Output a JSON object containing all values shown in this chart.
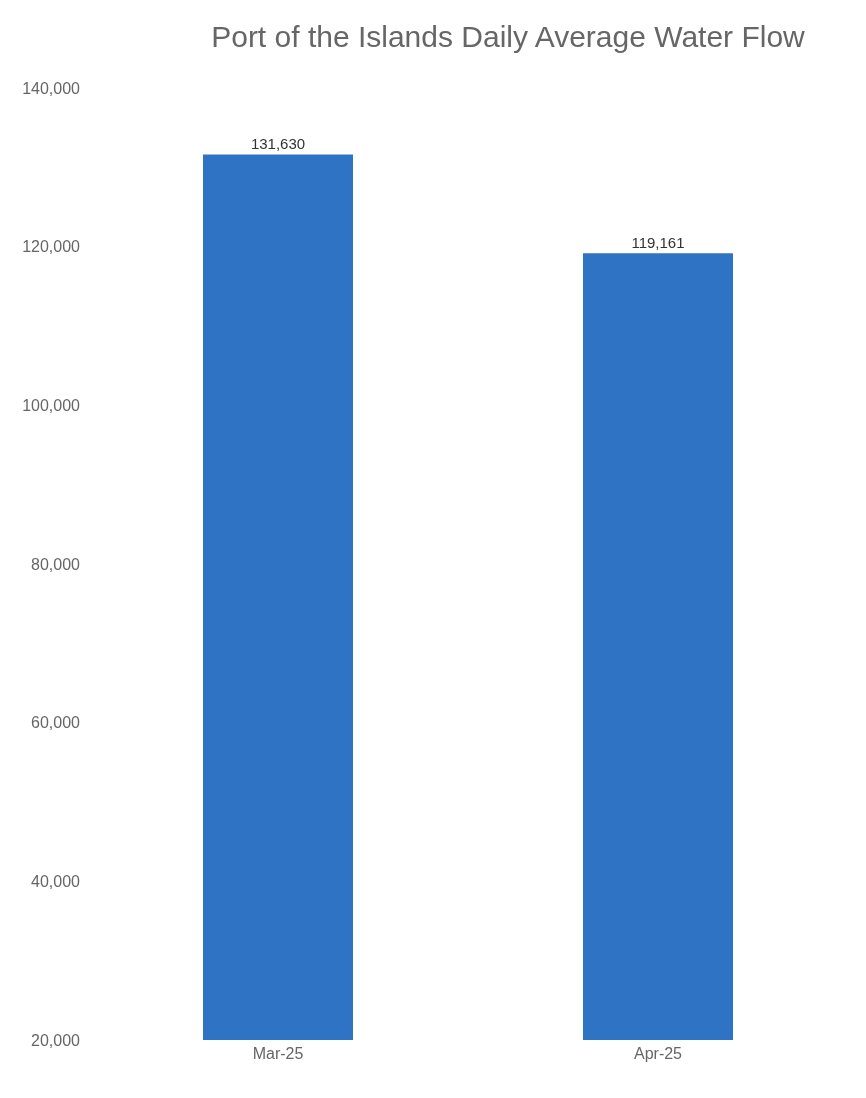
{
  "chart_data": {
    "type": "bar",
    "title": "Port of the Islands Daily Average Water Flow",
    "categories": [
      "Mar-25",
      "Apr-25"
    ],
    "values": [
      131630,
      119161
    ],
    "value_labels": [
      "131,630",
      "119,161"
    ],
    "color": "#2f74c4",
    "ylim": [
      20000,
      140000
    ],
    "yticks": [
      {
        "value": 20000,
        "label": "20,000"
      },
      {
        "value": 40000,
        "label": "40,000"
      },
      {
        "value": 60000,
        "label": "60,000"
      },
      {
        "value": 80000,
        "label": "80,000"
      },
      {
        "value": 100000,
        "label": "100,000"
      },
      {
        "value": 120000,
        "label": "120,000"
      },
      {
        "value": 140000,
        "label": "140,000"
      }
    ],
    "grid": false
  }
}
